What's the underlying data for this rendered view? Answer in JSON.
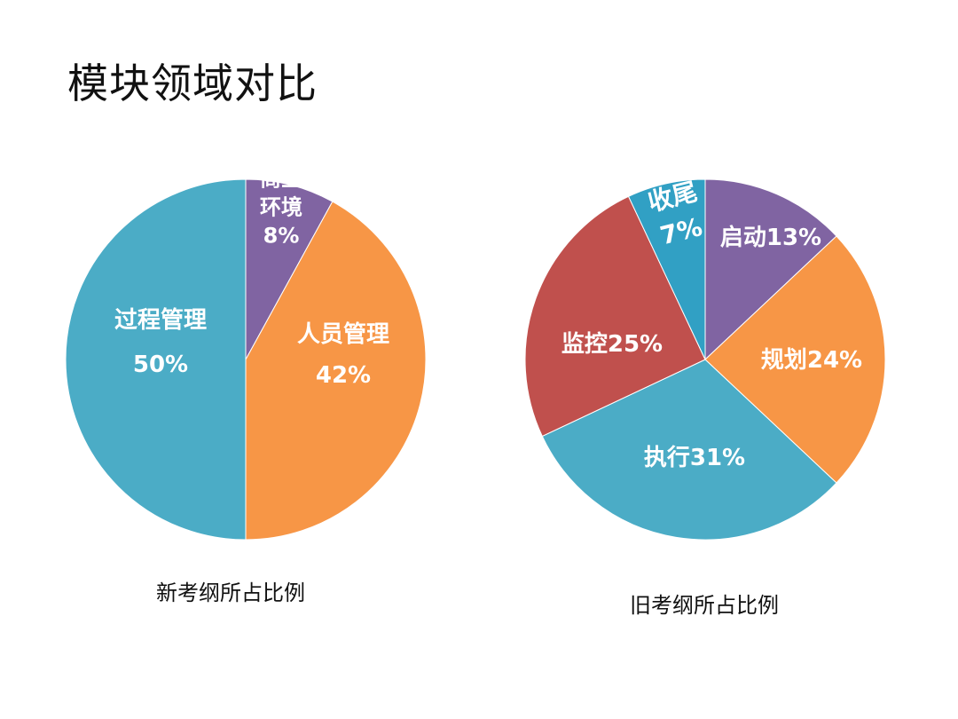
{
  "slide": {
    "title": "模块领域对比"
  },
  "chart_data": [
    {
      "type": "pie",
      "caption": "新考纲所占比例",
      "slices": [
        {
          "name": "商业环境",
          "value": 8,
          "label_lines": [
            "商业",
            "环境",
            "8%"
          ],
          "color": "#8064a2"
        },
        {
          "name": "人员管理",
          "value": 42,
          "label_lines": [
            "人员管理",
            "42%"
          ],
          "color": "#f79646"
        },
        {
          "name": "过程管理",
          "value": 50,
          "label_lines": [
            "过程管理",
            "50%"
          ],
          "color": "#4bacc6"
        }
      ]
    },
    {
      "type": "pie",
      "caption": "旧考纲所占比例",
      "slices": [
        {
          "name": "启动",
          "value": 13,
          "label_lines": [
            "启动13%"
          ],
          "color": "#8064a2"
        },
        {
          "name": "规划",
          "value": 24,
          "label_lines": [
            "规划24%"
          ],
          "color": "#f79646"
        },
        {
          "name": "执行",
          "value": 31,
          "label_lines": [
            "执行31%"
          ],
          "color": "#4bacc6"
        },
        {
          "name": "监控",
          "value": 25,
          "label_lines": [
            "监控25%"
          ],
          "color": "#c0504d"
        },
        {
          "name": "收尾",
          "value": 7,
          "label_lines": [
            "收尾",
            "7%"
          ],
          "color": "#31a0c4"
        }
      ]
    }
  ]
}
